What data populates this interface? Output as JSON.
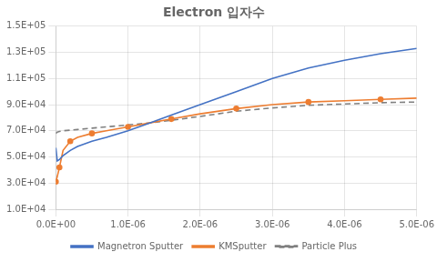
{
  "chart_data": {
    "type": "line",
    "title": "Electron 입자수",
    "x": [
      0,
      2e-08,
      5e-08,
      1e-07,
      2e-07,
      3e-07,
      5e-07,
      7e-07,
      1e-06,
      1.3e-06,
      1.6e-06,
      2e-06,
      2.5e-06,
      3e-06,
      3.5e-06,
      4e-06,
      4.5e-06,
      5e-06
    ],
    "series": [
      {
        "name": "Magnetron Sputter",
        "color": "#4472c4",
        "line_style": "solid",
        "values": [
          57000,
          47000,
          48000,
          51000,
          55000,
          58000,
          62000,
          65000,
          70000,
          76000,
          82000,
          90000,
          100000,
          110000,
          118000,
          124000,
          129000,
          133000
        ]
      },
      {
        "name": "KMSputter",
        "color": "#ed7d31",
        "line_style": "solid",
        "marker": "circle",
        "values": [
          31000,
          35000,
          42000,
          55000,
          62000,
          65000,
          68000,
          70000,
          73000,
          76000,
          79000,
          83000,
          87000,
          90000,
          92000,
          93000,
          94000,
          95000
        ]
      },
      {
        "name": "Particle Plus",
        "color": "#808080",
        "line_style": "dashed",
        "values": [
          68000,
          69000,
          69500,
          70000,
          70500,
          71000,
          72000,
          73000,
          74500,
          76000,
          78000,
          81000,
          85000,
          87500,
          89500,
          90500,
          91500,
          92000
        ]
      }
    ],
    "xlim": [
      0,
      5e-06
    ],
    "xticks": [
      {
        "value": 0,
        "label": "0.0E+00"
      },
      {
        "value": 1e-06,
        "label": "1.0E-06"
      },
      {
        "value": 2e-06,
        "label": "2.0E-06"
      },
      {
        "value": 3e-06,
        "label": "3.0E-06"
      },
      {
        "value": 4e-06,
        "label": "4.0E-06"
      },
      {
        "value": 5e-06,
        "label": "5.0E-06"
      }
    ],
    "ylim": [
      10000,
      150000
    ],
    "yticks": [
      {
        "value": 10000,
        "label": "1.0E+04"
      },
      {
        "value": 30000,
        "label": "3.0E+04"
      },
      {
        "value": 50000,
        "label": "5.0E+04"
      },
      {
        "value": 70000,
        "label": "7.0E+04"
      },
      {
        "value": 90000,
        "label": "9.0E+04"
      },
      {
        "value": 110000,
        "label": "1.1E+05"
      },
      {
        "value": 130000,
        "label": "1.3E+05"
      },
      {
        "value": 150000,
        "label": "1.5E+05"
      }
    ],
    "grid": true,
    "legend": "bottom"
  }
}
